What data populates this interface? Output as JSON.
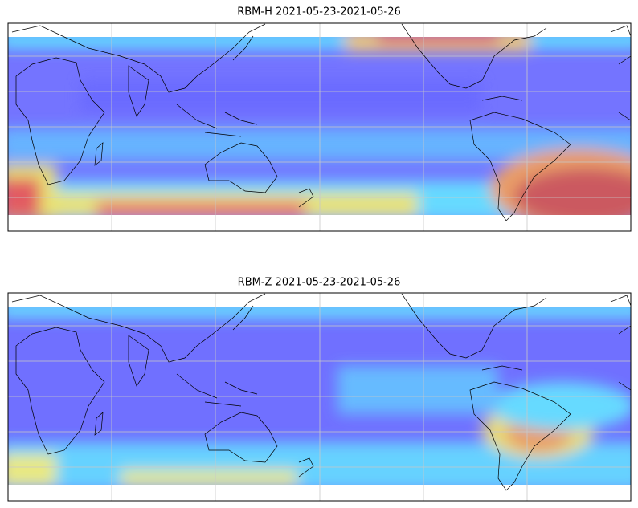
{
  "maps": [
    {
      "title": "RBM-H 2021-05-23-2021-05-26"
    },
    {
      "title": "RBM-Z 2021-05-23-2021-05-26"
    }
  ]
}
